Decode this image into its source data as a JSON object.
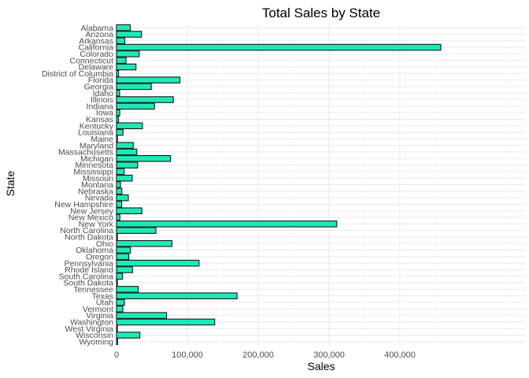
{
  "chart_data": {
    "type": "bar",
    "orientation": "horizontal",
    "title": "Total Sales by State",
    "xlabel": "Sales",
    "ylabel": "State",
    "xlim": [
      0,
      470000
    ],
    "xticks": [
      0,
      100000,
      200000,
      300000,
      400000
    ],
    "xtick_labels": [
      "0",
      "100,000",
      "200,000",
      "300,000",
      "400,000"
    ],
    "grid": true,
    "bar_color": "#1de9b6",
    "bar_edge_color": "#1a1a1a",
    "categories": [
      "Alabama",
      "Arizona",
      "Arkansas",
      "California",
      "Colorado",
      "Connecticut",
      "Delaware",
      "District of Columbia",
      "Florida",
      "Georgia",
      "Idaho",
      "Illinois",
      "Indiana",
      "Iowa",
      "Kansas",
      "Kentucky",
      "Louisiana",
      "Maine",
      "Maryland",
      "Massachusetts",
      "Michigan",
      "Minnesota",
      "Mississippi",
      "Missouri",
      "Montana",
      "Nebraska",
      "Nevada",
      "New Hampshire",
      "New Jersey",
      "New Mexico",
      "New York",
      "North Carolina",
      "North Dakota",
      "Ohio",
      "Oklahoma",
      "Oregon",
      "Pennsylvania",
      "Rhode Island",
      "South Carolina",
      "South Dakota",
      "Tennessee",
      "Texas",
      "Utah",
      "Vermont",
      "Virginia",
      "Washington",
      "West Virginia",
      "Wisconsin",
      "Wyoming"
    ],
    "values": [
      19500,
      35300,
      11700,
      457700,
      32100,
      13400,
      27500,
      2900,
      89500,
      49100,
      4400,
      80200,
      53600,
      4600,
      2900,
      36600,
      9200,
      1300,
      23700,
      28600,
      76300,
      29900,
      10800,
      22200,
      5600,
      7500,
      16700,
      7300,
      35800,
      4800,
      310900,
      55600,
      900,
      78300,
      19700,
      17400,
      116500,
      22600,
      8500,
      1300,
      30700,
      170200,
      11200,
      9000,
      70600,
      138600,
      1200,
      33000,
      1600
    ]
  }
}
